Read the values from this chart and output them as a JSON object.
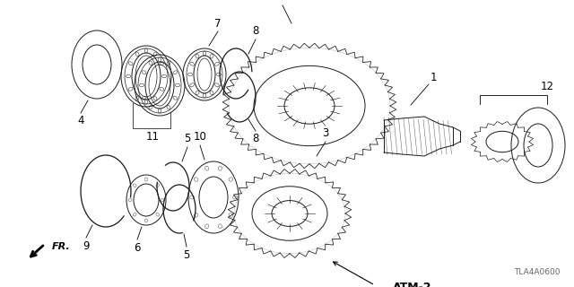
{
  "bg_color": "#ffffff",
  "line_color": "#1a1a1a",
  "diagram_code": "TLA4A0600",
  "figsize": [
    6.4,
    3.2
  ],
  "dpi": 100
}
